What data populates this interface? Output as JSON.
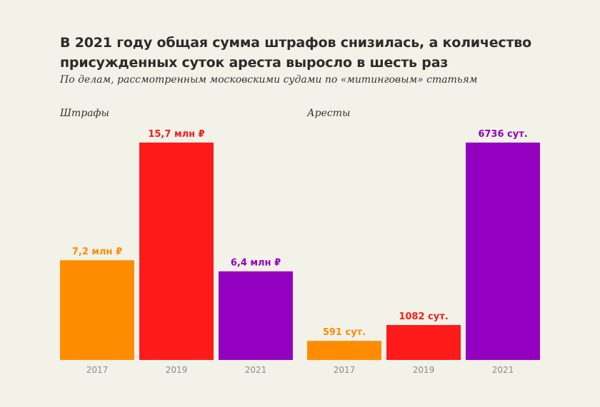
{
  "title": "В 2021 году общая сумма штрафов снизилась, а количество присужденных суток ареста выросло в шесть раз",
  "subtitle": "По делам, рассмотренным московскими судами по «митинговым» статьям",
  "colors": {
    "2017": "#ff8c00",
    "2019": "#ff1a1a",
    "2021": "#9400c0",
    "background": "#f3f2e9"
  },
  "chart_data": [
    {
      "type": "bar",
      "title": "Штрафы",
      "categories": [
        "2017",
        "2019",
        "2021"
      ],
      "values": [
        7.2,
        15.7,
        6.4
      ],
      "value_labels": [
        "7,2 млн ₽",
        "15,7 млн ₽",
        "6,4 млн ₽"
      ],
      "ylim": [
        0,
        15.7
      ]
    },
    {
      "type": "bar",
      "title": "Аресты",
      "categories": [
        "2017",
        "2019",
        "2021"
      ],
      "values": [
        591,
        1082,
        6736
      ],
      "value_labels": [
        "591 сут.",
        "1082 сут.",
        "6736 сут."
      ],
      "ylim": [
        0,
        6736
      ]
    }
  ]
}
